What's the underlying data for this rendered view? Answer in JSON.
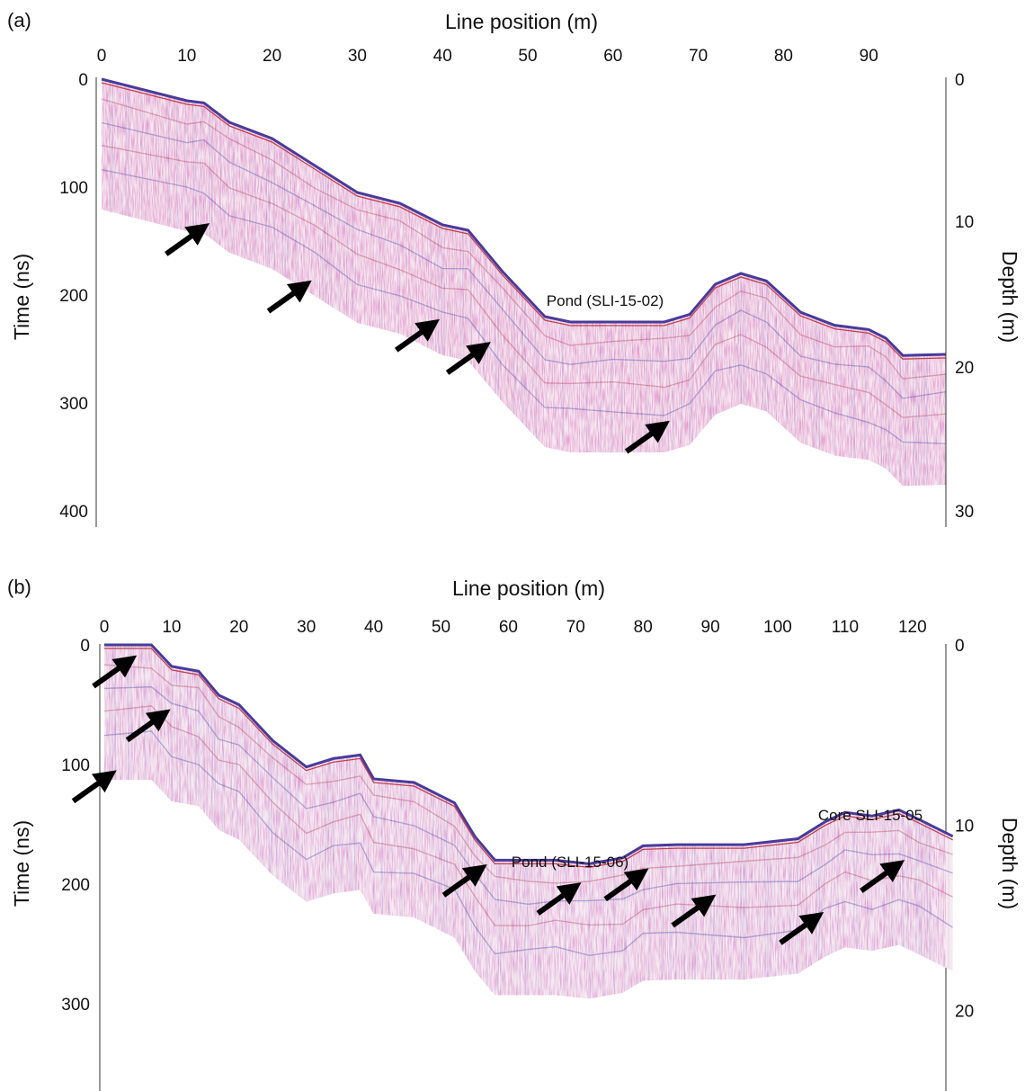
{
  "figure": {
    "panels": [
      {
        "id": "a",
        "panel_label": "(a)",
        "x_axis_title": "Line position (m)",
        "y_left_title": "Time (ns)",
        "y_right_title": "Depth (m)",
        "x_ticks": [
          "0",
          "10",
          "20",
          "30",
          "40",
          "50",
          "60",
          "70",
          "80",
          "90"
        ],
        "y_left_ticks": [
          "0",
          "100",
          "200",
          "300",
          "400"
        ],
        "y_right_ticks": [
          "0",
          "10",
          "20",
          "30"
        ],
        "annotations": [
          "Pond (SLI-15-02)"
        ]
      },
      {
        "id": "b",
        "panel_label": "(b)",
        "x_axis_title": "Line position (m)",
        "y_left_title": "Time (ns)",
        "y_right_title": "Depth (m)",
        "x_ticks": [
          "0",
          "10",
          "20",
          "30",
          "40",
          "50",
          "60",
          "70",
          "80",
          "90",
          "100",
          "110",
          "120"
        ],
        "y_left_ticks": [
          "0",
          "100",
          "200",
          "300"
        ],
        "y_right_ticks": [
          "0",
          "10",
          "20"
        ],
        "annotations": [
          "Pond (SLI-15-06)",
          "Core SLI-15-05"
        ]
      }
    ]
  },
  "chart_data": [
    {
      "type": "heatmap",
      "xlim": [
        0,
        99
      ],
      "ylim": [
        0,
        410
      ],
      "surface_profile": {
        "x": [
          0,
          10,
          12,
          15,
          20,
          25,
          30,
          35,
          40,
          43,
          47,
          52,
          55,
          60,
          66,
          69,
          72,
          75,
          78,
          82,
          86,
          90,
          92,
          94,
          99
        ],
        "time_ns": [
          0,
          20,
          22,
          40,
          55,
          80,
          105,
          115,
          135,
          140,
          178,
          220,
          225,
          225,
          225,
          218,
          190,
          180,
          187,
          216,
          228,
          232,
          240,
          256,
          255
        ]
      },
      "arrows_x": [
        12,
        24,
        39,
        45,
        66
      ],
      "colors": {
        "positive": "#c0304a",
        "negative": "#3a3aa8",
        "arrow": "#000000"
      }
    },
    {
      "type": "heatmap",
      "xlim": [
        0,
        126
      ],
      "ylim": [
        0,
        330
      ],
      "surface_profile": {
        "x": [
          0,
          7,
          10,
          14,
          17,
          20,
          25,
          30,
          34,
          38,
          40,
          46,
          52,
          55,
          58,
          63,
          67,
          72,
          77,
          80,
          85,
          95,
          103,
          107,
          110,
          114,
          118,
          121,
          126
        ],
        "time_ns": [
          0,
          0,
          18,
          22,
          42,
          50,
          80,
          102,
          95,
          92,
          112,
          115,
          132,
          160,
          180,
          180,
          180,
          183,
          178,
          168,
          167,
          167,
          162,
          148,
          140,
          143,
          138,
          146,
          160
        ]
      },
      "arrows_x": [
        4,
        9,
        1,
        56,
        70,
        80,
        90,
        106,
        118
      ],
      "colors": {
        "positive": "#c0304a",
        "negative": "#3a3aa8",
        "arrow": "#000000"
      }
    }
  ]
}
